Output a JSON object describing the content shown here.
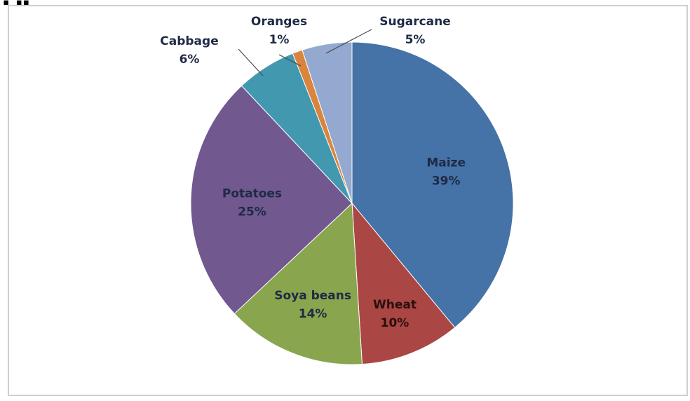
{
  "chart_data": {
    "type": "pie",
    "title": "",
    "slices": [
      {
        "name": "Maize",
        "value": 39,
        "label": "39%",
        "color": "#4572A7"
      },
      {
        "name": "Wheat",
        "value": 10,
        "label": "10%",
        "color": "#AA4643"
      },
      {
        "name": "Soya beans",
        "value": 14,
        "label": "14%",
        "color": "#89A54E"
      },
      {
        "name": "Potatoes",
        "value": 25,
        "label": "25%",
        "color": "#71588F"
      },
      {
        "name": "Cabbage",
        "value": 6,
        "label": "6%",
        "color": "#4198AF"
      },
      {
        "name": "Oranges",
        "value": 1,
        "label": "1%",
        "color": "#DB843D"
      },
      {
        "name": "Sugarcane",
        "value": 5,
        "label": "5%",
        "color": "#93A9CF"
      }
    ],
    "start_angle": "12 o'clock",
    "direction": "clockwise",
    "legend": "none"
  }
}
